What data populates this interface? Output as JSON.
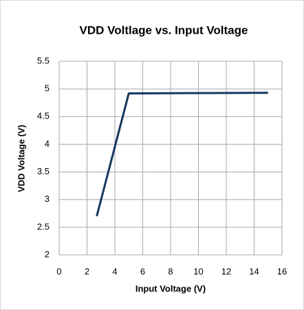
{
  "chart_data": {
    "type": "line",
    "title": "VDD Voltlage vs. Input Voltage",
    "x_label": "Input Voltage (V)",
    "y_label": "VDD Voltage (V)",
    "x": [
      2.7,
      5,
      15
    ],
    "series": [
      {
        "name": "VDD Voltage",
        "color": "#17375e",
        "values": [
          2.7,
          4.92,
          4.93
        ]
      }
    ],
    "xlim": [
      0,
      16
    ],
    "xticks": [
      0,
      2,
      4,
      6,
      8,
      10,
      12,
      14,
      16
    ],
    "ylim": [
      2,
      5.5
    ],
    "yticks": [
      2,
      2.5,
      3,
      3.5,
      4,
      4.5,
      5,
      5.5
    ],
    "grid": true
  }
}
